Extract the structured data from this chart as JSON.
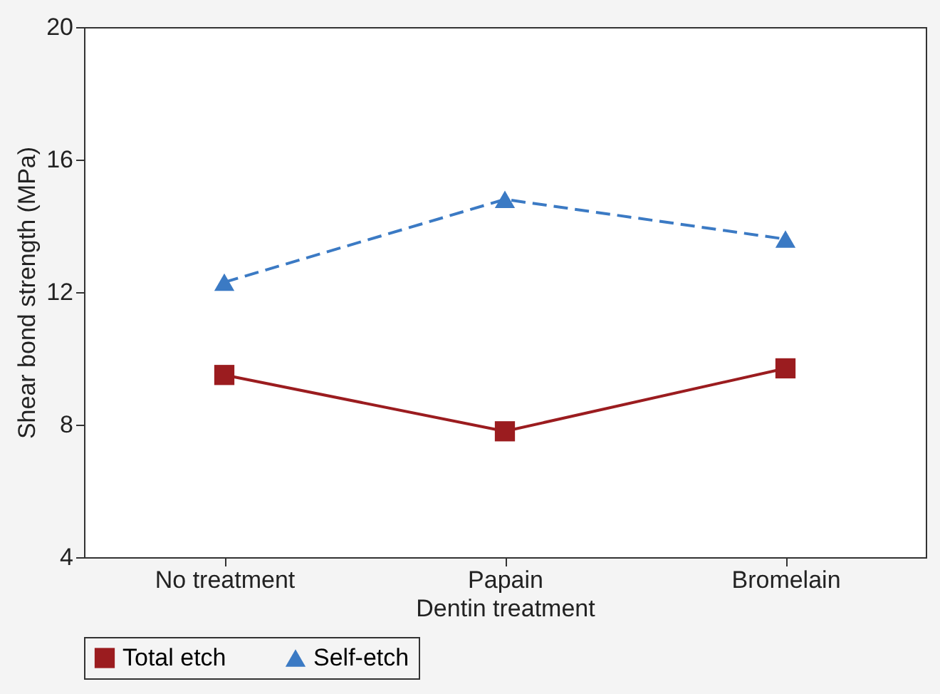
{
  "chart_data": {
    "type": "line",
    "xlabel": "Dentin treatment",
    "ylabel": "Shear bond strength (MPa)",
    "categories": [
      "No treatment",
      "Papain",
      "Bromelain"
    ],
    "series": [
      {
        "name": "Total etch",
        "color": "#9b1c1f",
        "values": [
          9.5,
          7.8,
          9.7
        ],
        "marker": "square",
        "line_style": "solid"
      },
      {
        "name": "Self-etch",
        "color": "#3b7ac4",
        "values": [
          12.3,
          14.8,
          13.6
        ],
        "marker": "triangle",
        "line_style": "dashed"
      }
    ],
    "ylim": [
      4,
      20
    ],
    "yticks": [
      4,
      8,
      12,
      16,
      20
    ],
    "grid": false,
    "legend": "bottom"
  }
}
